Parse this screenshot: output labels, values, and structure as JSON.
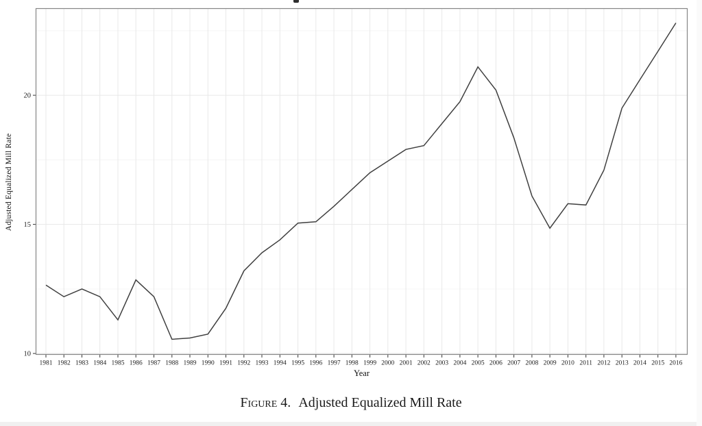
{
  "page": {
    "background": "#ffffff",
    "note": "figure cropped from an academic paper; a sliver of the page title glyph is visible at top center"
  },
  "chart_data": {
    "type": "line",
    "title": "",
    "xlabel": "Year",
    "ylabel": "Adjusted Equalized Mill Rate",
    "x": [
      1981,
      1982,
      1983,
      1984,
      1985,
      1986,
      1987,
      1988,
      1989,
      1990,
      1991,
      1992,
      1993,
      1994,
      1995,
      1996,
      1997,
      1998,
      1999,
      2000,
      2001,
      2002,
      2003,
      2004,
      2005,
      2006,
      2007,
      2008,
      2009,
      2010,
      2011,
      2012,
      2013,
      2014,
      2015,
      2016
    ],
    "series": [
      {
        "name": "Adjusted Equalized Mill Rate",
        "values": [
          12.65,
          12.2,
          12.5,
          12.2,
          11.3,
          12.85,
          12.2,
          10.55,
          10.6,
          10.75,
          11.75,
          13.2,
          13.9,
          14.4,
          15.05,
          15.1,
          15.7,
          16.35,
          17.0,
          17.45,
          17.9,
          18.05,
          18.9,
          19.75,
          21.1,
          20.2,
          18.35,
          16.1,
          14.85,
          15.8,
          15.75,
          17.1,
          19.5,
          20.6,
          21.7,
          22.8
        ]
      }
    ],
    "xlim": [
      1980.43,
      2016.65
    ],
    "ylim": [
      9.95,
      23.37
    ],
    "yticks": [
      10,
      15,
      20
    ],
    "y_minor_gridlines": [
      12.5,
      17.5,
      22.5
    ],
    "x_tick_every_year": true,
    "grid": "on",
    "legend": "none",
    "colors": {
      "line": "#3f3f3f",
      "grid_major": "#e8e8e8",
      "grid_minor": "#f4f4f4",
      "panel_border": "#858585",
      "tick": "#333333",
      "tick_label": "#1a1a1a"
    }
  },
  "caption": {
    "label": "Figure 4.",
    "text": "Adjusted Equalized Mill Rate"
  }
}
